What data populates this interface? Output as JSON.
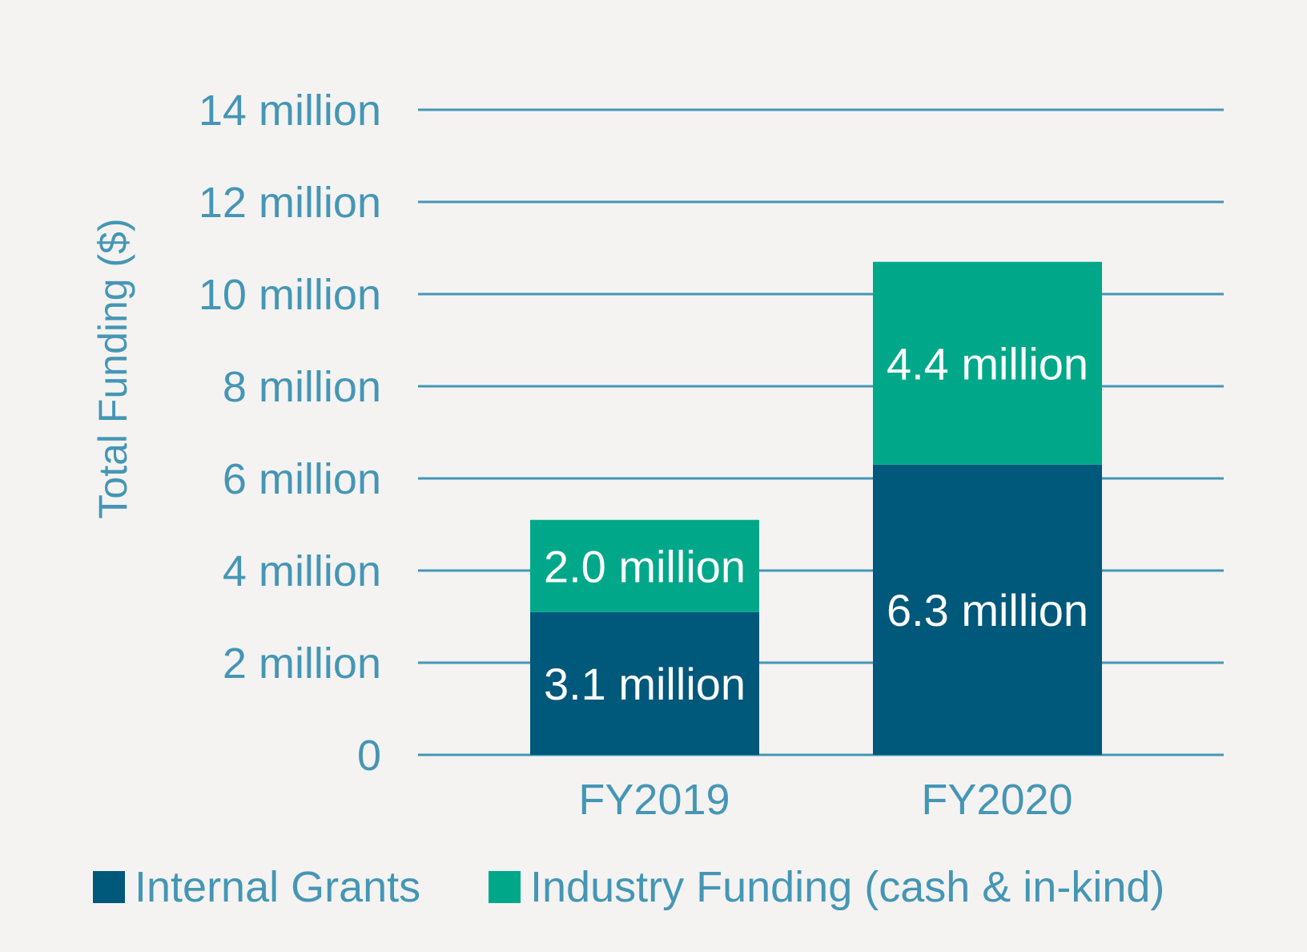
{
  "chart_data": {
    "type": "bar",
    "stacked": true,
    "title": "",
    "xlabel": "",
    "ylabel": "Total Funding ($)",
    "categories": [
      "FY2019",
      "FY2020"
    ],
    "series": [
      {
        "name": "Internal Grants",
        "values": [
          3.1,
          6.3
        ],
        "labels": [
          "3.1 million",
          "6.3 million"
        ],
        "color": "#00587a"
      },
      {
        "name": "Industry Funding (cash & in-kind)",
        "values": [
          2.0,
          4.4
        ],
        "labels": [
          "2.0 million",
          "4.4 million"
        ],
        "color": "#00a889"
      }
    ],
    "ylim": [
      0,
      14
    ],
    "yticks": [
      0,
      2,
      4,
      6,
      8,
      10,
      12,
      14
    ],
    "ytick_labels": [
      "0",
      "2 million",
      "4 million",
      "6 million",
      "8 million",
      "10 million",
      "12 million",
      "14 million"
    ],
    "grid": true,
    "legend": "bottom",
    "colors": {
      "axis_text": "#4596b5",
      "gridline": "#4596b5",
      "background": "#f4f3f1"
    }
  }
}
